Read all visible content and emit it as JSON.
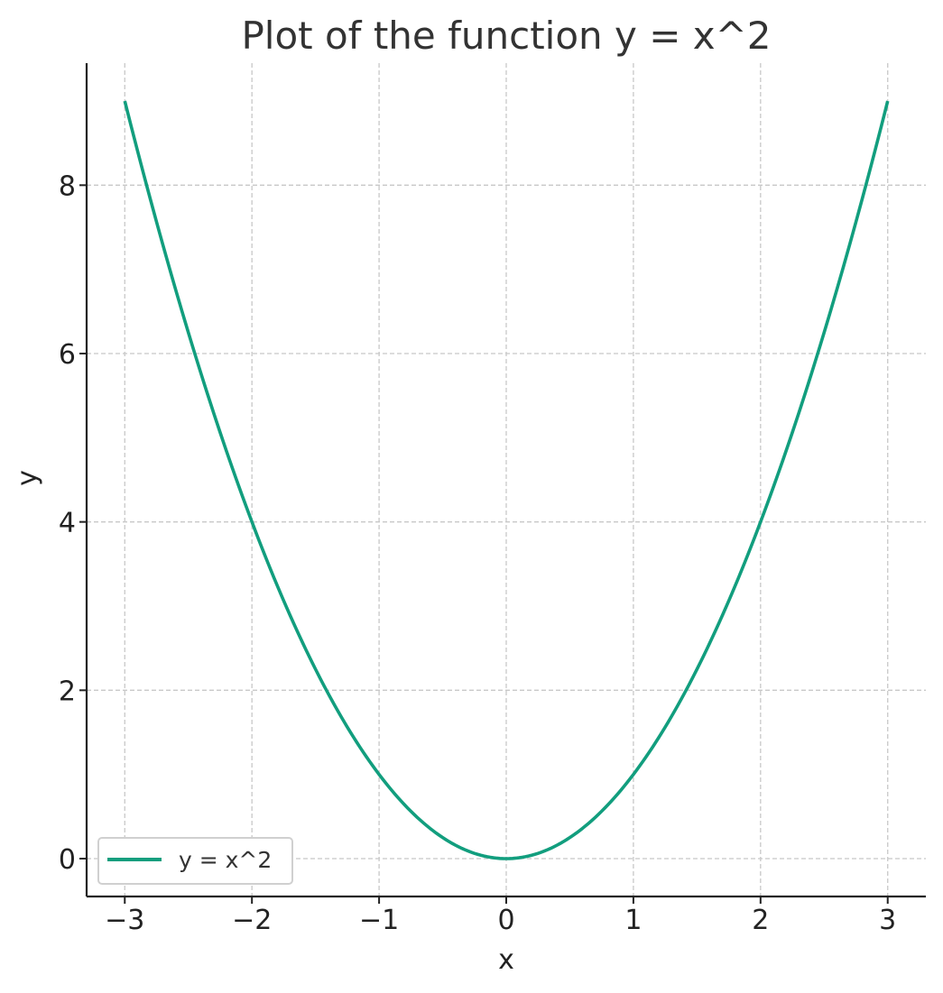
{
  "chart_data": {
    "type": "line",
    "title": "Plot of the function y = x^2",
    "xlabel": "x",
    "ylabel": "y",
    "xlim": [
      -3.3,
      3.3
    ],
    "ylim": [
      -0.45,
      9.45
    ],
    "xticks": [
      -3,
      -2,
      -1,
      0,
      1,
      2,
      3
    ],
    "xtick_labels": [
      "−3",
      "−2",
      "−1",
      "0",
      "1",
      "2",
      "3"
    ],
    "yticks": [
      0,
      2,
      4,
      6,
      8
    ],
    "ytick_labels": [
      "0",
      "2",
      "4",
      "6",
      "8"
    ],
    "grid": true,
    "legend_position": "lower-left",
    "series": [
      {
        "name": "y = x^2",
        "color": "#129e7e",
        "function": "x^2",
        "x_range": [
          -3,
          3
        ],
        "points": [
          {
            "x": -3,
            "y": 9
          },
          {
            "x": -2,
            "y": 4
          },
          {
            "x": -1,
            "y": 1
          },
          {
            "x": 0,
            "y": 0
          },
          {
            "x": 1,
            "y": 1
          },
          {
            "x": 2,
            "y": 4
          },
          {
            "x": 3,
            "y": 9
          }
        ]
      }
    ]
  }
}
